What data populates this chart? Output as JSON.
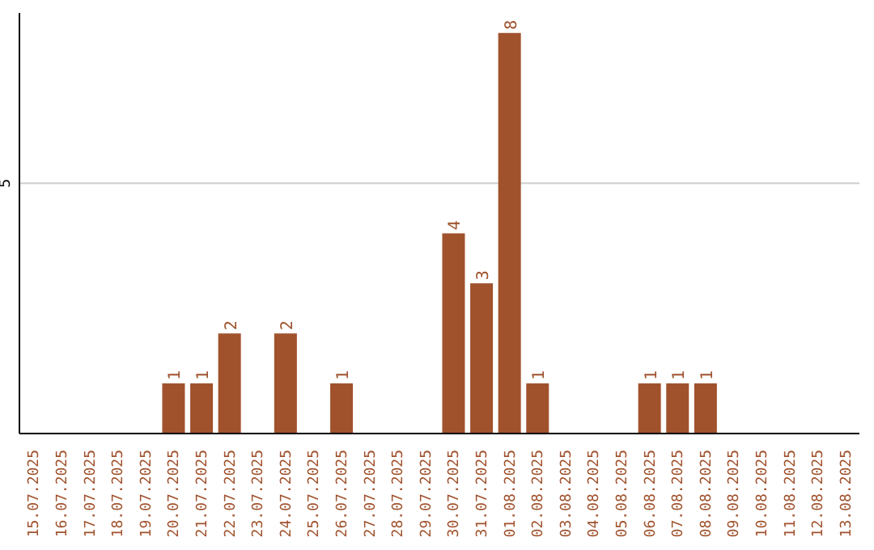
{
  "chart_data": {
    "type": "bar",
    "categories": [
      "15.07.2025",
      "16.07.2025",
      "17.07.2025",
      "18.07.2025",
      "19.07.2025",
      "20.07.2025",
      "21.07.2025",
      "22.07.2025",
      "23.07.2025",
      "24.07.2025",
      "25.07.2025",
      "26.07.2025",
      "27.07.2025",
      "28.07.2025",
      "29.07.2025",
      "30.07.2025",
      "31.07.2025",
      "01.08.2025",
      "02.08.2025",
      "03.08.2025",
      "04.08.2025",
      "05.08.2025",
      "06.08.2025",
      "07.08.2025",
      "08.08.2025",
      "09.08.2025",
      "10.08.2025",
      "11.08.2025",
      "12.08.2025",
      "13.08.2025"
    ],
    "values": [
      null,
      null,
      null,
      null,
      null,
      1,
      1,
      2,
      null,
      2,
      null,
      1,
      null,
      null,
      null,
      4,
      3,
      8,
      1,
      null,
      null,
      null,
      1,
      1,
      1,
      null,
      null,
      null,
      null,
      null
    ],
    "color": "#a0522d",
    "ylim": [
      0,
      8.4
    ],
    "yticks": [
      {
        "value": 0,
        "label": null
      },
      5
    ],
    "grid": "y",
    "data_labels": true
  }
}
